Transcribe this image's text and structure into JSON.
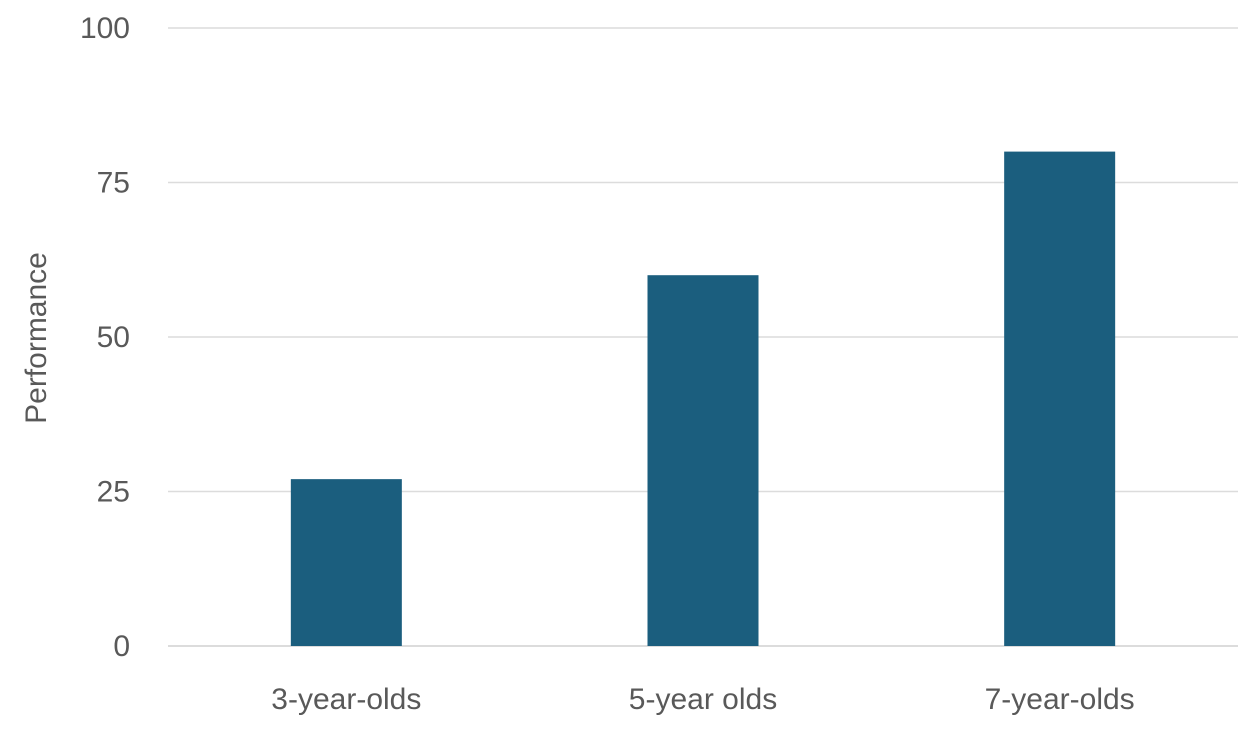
{
  "chart_data": {
    "type": "bar",
    "title": "",
    "xlabel": "",
    "ylabel": "Performance",
    "categories": [
      "3-year-olds",
      "5-year olds",
      "7-year-olds"
    ],
    "values": [
      27,
      60,
      80
    ],
    "ylim": [
      0,
      100
    ],
    "yticks": [
      0,
      25,
      50,
      75,
      100
    ],
    "grid": true,
    "legend": "none",
    "bar_color": "#1b5e7e"
  }
}
